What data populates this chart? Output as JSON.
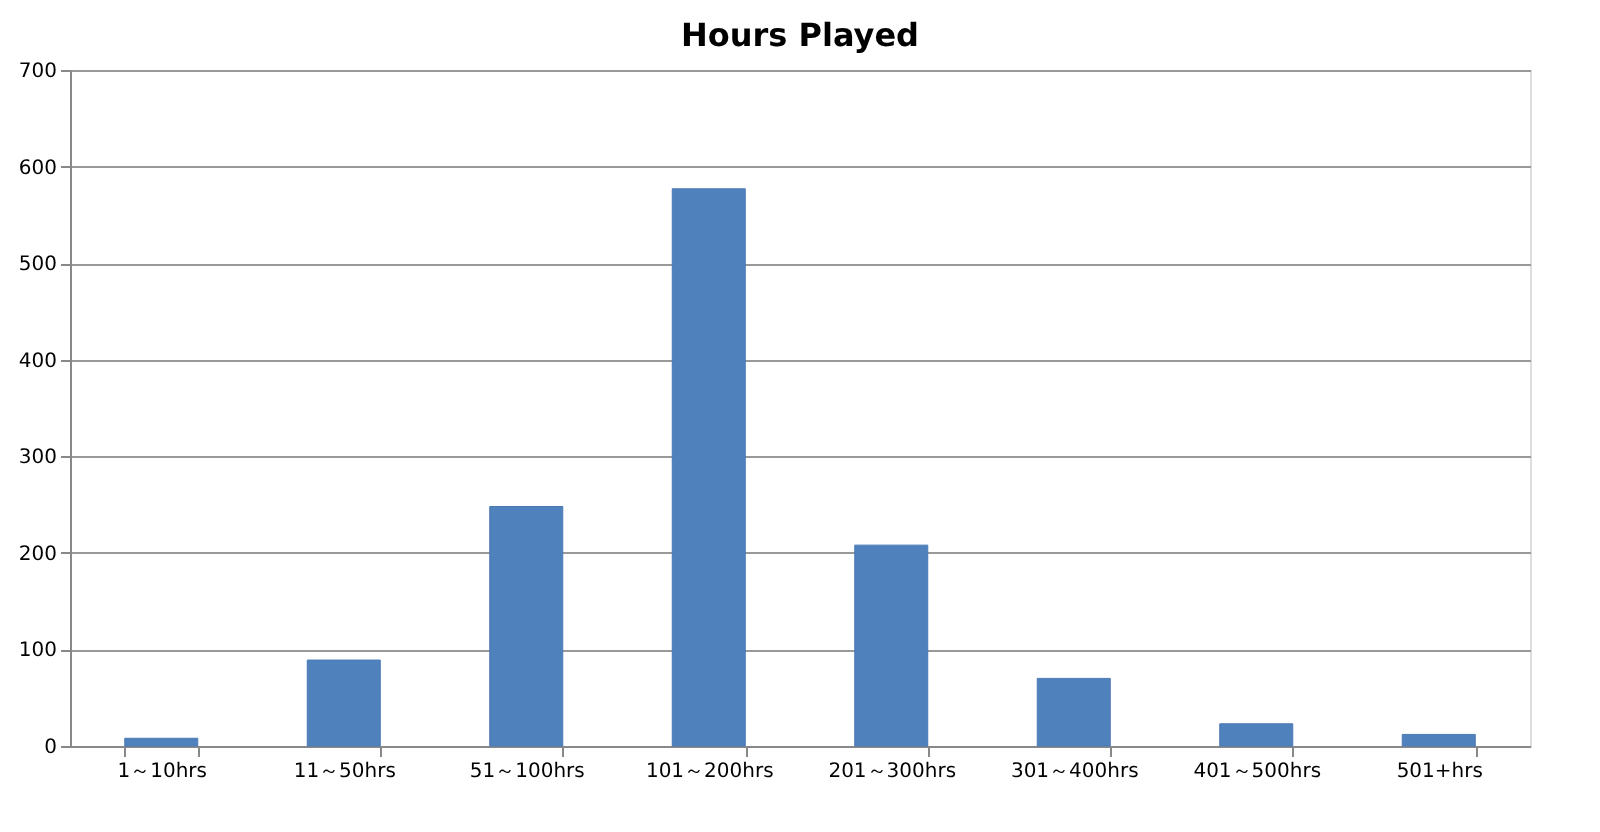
{
  "chart_data": {
    "type": "bar",
    "title": "Hours Played",
    "categories": [
      "1～10hrs",
      "11～50hrs",
      "51～100hrs",
      "101～200hrs",
      "201～300hrs",
      "301～400hrs",
      "401～500hrs",
      "501+hrs"
    ],
    "values": [
      8,
      89,
      248,
      577,
      208,
      70,
      23,
      12
    ],
    "color": "#4f81bd",
    "ylim": [
      0,
      700
    ],
    "yticks": [
      0,
      100,
      200,
      300,
      400,
      500,
      600,
      700
    ],
    "grid": "y"
  }
}
